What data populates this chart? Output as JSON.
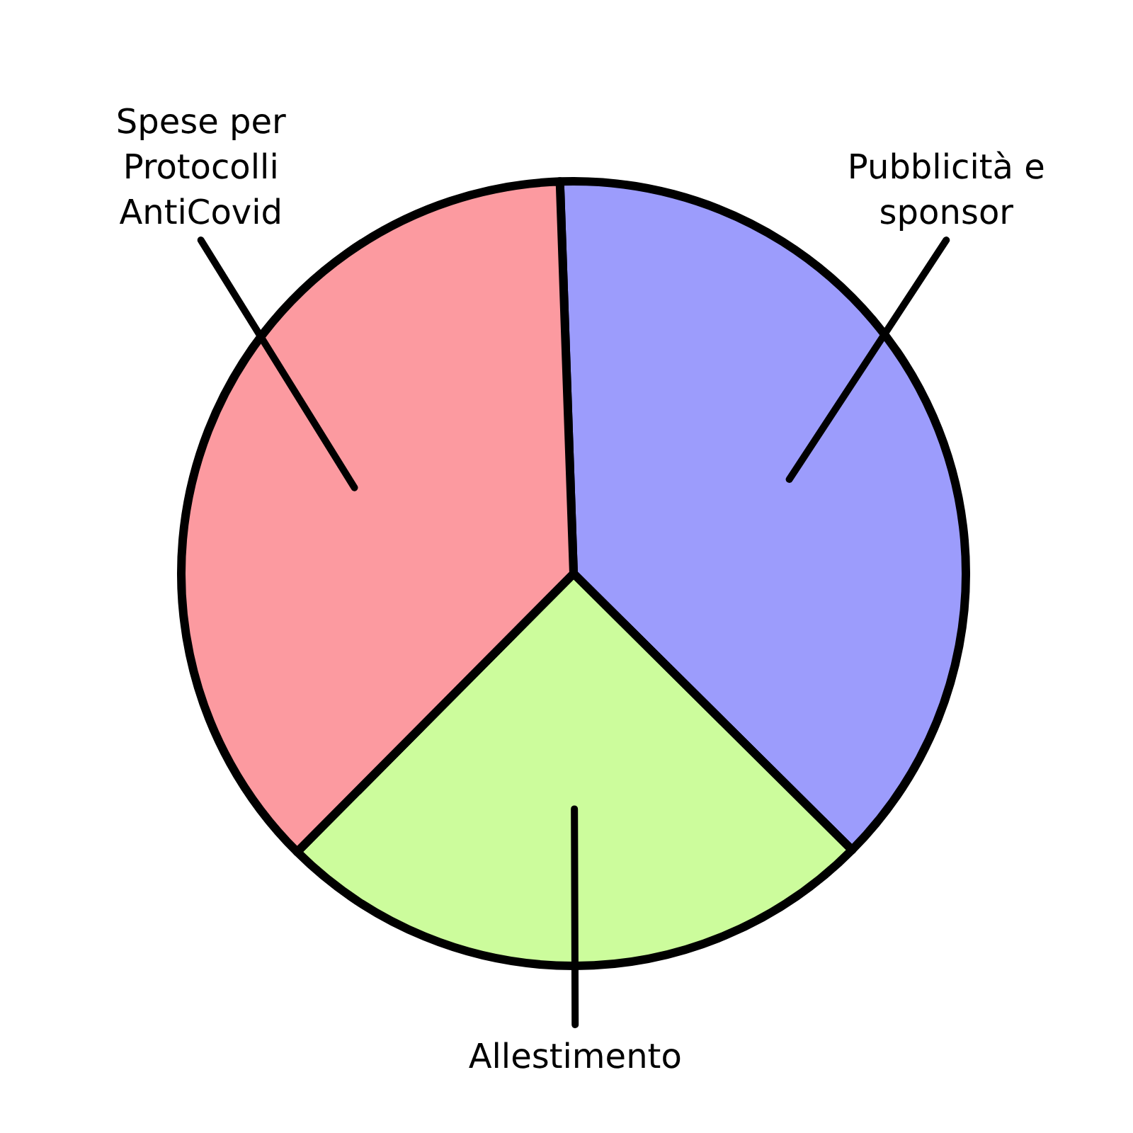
{
  "chart_data": {
    "type": "pie",
    "categories": [
      "Pubblicità e sponsor",
      "Allestimento",
      "Spese per Protocolli AntiCovid"
    ],
    "values": [
      38,
      25,
      37
    ],
    "colors": [
      "#9c9cfc",
      "#ccfc9c",
      "#fc9aa0"
    ],
    "legend": false
  }
}
